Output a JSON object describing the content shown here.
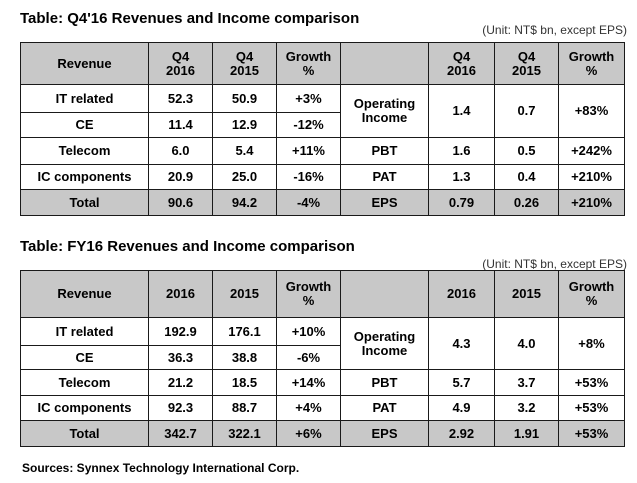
{
  "sections": [
    {
      "title": "Table: Q4'16 Revenues  and  Income comparison",
      "unit": "(Unit: NT$ bn, except EPS)",
      "header": {
        "revenue": "Revenue",
        "col1_line1": "Q4",
        "col1_line2": "2016",
        "col2_line1": "Q4",
        "col2_line2": "2015",
        "growth_line1": "Growth",
        "growth_line2": "%",
        "icol1_line1": "Q4",
        "icol1_line2": "2016",
        "icol2_line1": "Q4",
        "icol2_line2": "2015",
        "igrowth_line1": "Growth",
        "igrowth_line2": "%"
      },
      "revenue_rows": [
        {
          "label": "IT related",
          "v1": "52.3",
          "v2": "50.9",
          "growth": "+3%"
        },
        {
          "label": "CE",
          "v1": "11.4",
          "v2": "12.9",
          "growth": "-12%"
        },
        {
          "label": "Telecom",
          "v1": "6.0",
          "v2": "5.4",
          "growth": "+11%"
        },
        {
          "label": "IC components",
          "v1": "20.9",
          "v2": "25.0",
          "growth": "-16%"
        }
      ],
      "income_rows": [
        {
          "label_line1": "Operating",
          "label_line2": "Income",
          "v1": "1.4",
          "v2": "0.7",
          "growth": "+83%"
        },
        {
          "label": "PBT",
          "v1": "1.6",
          "v2": "0.5",
          "growth": "+242%"
        },
        {
          "label": "PAT",
          "v1": "1.3",
          "v2": "0.4",
          "growth": "+210%"
        }
      ],
      "total": {
        "label": "Total",
        "v1": "90.6",
        "v2": "94.2",
        "growth": "-4%"
      },
      "eps": {
        "label": "EPS",
        "v1": "0.79",
        "v2": "0.26",
        "growth": "+210%"
      }
    },
    {
      "title": "Table: FY16 Revenues  and  Income comparison",
      "unit": "(Unit: NT$ bn, except EPS)",
      "header": {
        "revenue": "Revenue",
        "col1_line1": "2016",
        "col1_line2": "",
        "col2_line1": "2015",
        "col2_line2": "",
        "growth_line1": "Growth",
        "growth_line2": "%",
        "icol1_line1": "2016",
        "icol1_line2": "",
        "icol2_line1": "2015",
        "icol2_line2": "",
        "igrowth_line1": "Growth",
        "igrowth_line2": "%"
      },
      "revenue_rows": [
        {
          "label": "IT related",
          "v1": "192.9",
          "v2": "176.1",
          "growth": "+10%"
        },
        {
          "label": "CE",
          "v1": "36.3",
          "v2": "38.8",
          "growth": "-6%"
        },
        {
          "label": "Telecom",
          "v1": "21.2",
          "v2": "18.5",
          "growth": "+14%"
        },
        {
          "label": "IC components",
          "v1": "92.3",
          "v2": "88.7",
          "growth": "+4%"
        }
      ],
      "income_rows": [
        {
          "label_line1": "Operating",
          "label_line2": "Income",
          "v1": "4.3",
          "v2": "4.0",
          "growth": "+8%"
        },
        {
          "label": "PBT",
          "v1": "5.7",
          "v2": "3.7",
          "growth": "+53%"
        },
        {
          "label": "PAT",
          "v1": "4.9",
          "v2": "3.2",
          "growth": "+53%"
        }
      ],
      "total": {
        "label": "Total",
        "v1": "342.7",
        "v2": "322.1",
        "growth": "+6%"
      },
      "eps": {
        "label": "EPS",
        "v1": "2.92",
        "v2": "1.91",
        "growth": "+53%"
      }
    }
  ],
  "source": "Sources: Synnex Technology International Corp."
}
